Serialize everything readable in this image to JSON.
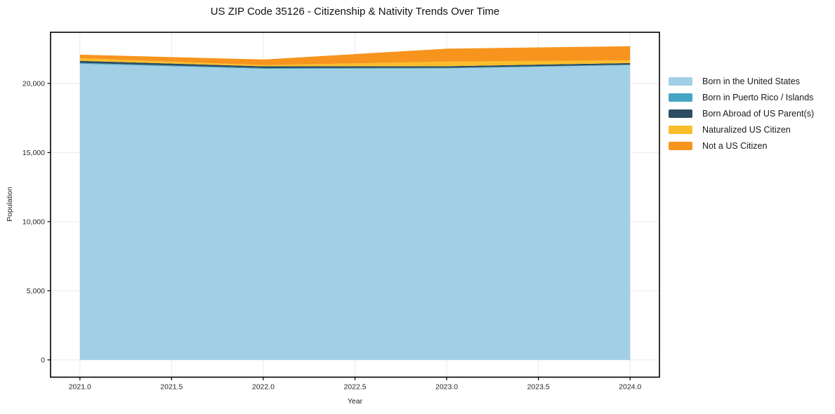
{
  "figure": {
    "background": "#ffffff",
    "colors": {
      "grid": "#e9e9e9",
      "spine": "#000000",
      "tick_label": "#262626",
      "title": "#111111"
    }
  },
  "chart_data": {
    "type": "area",
    "stacked": true,
    "title": "US ZIP Code 35126 - Citizenship & Nativity Trends Over Time",
    "xlabel": "Year",
    "ylabel": "Population",
    "x": [
      2021,
      2022,
      2023,
      2024
    ],
    "series": [
      {
        "name": "Born in the United States",
        "color": "#a1cfe6",
        "values": [
          21420,
          21060,
          21090,
          21320
        ]
      },
      {
        "name": "Born in Puerto Rico / Islands",
        "color": "#46a5c4",
        "values": [
          65,
          50,
          35,
          40
        ]
      },
      {
        "name": "Born Abroad of US Parent(s)",
        "color": "#2c4d63",
        "values": [
          150,
          130,
          120,
          115
        ]
      },
      {
        "name": "Naturalized US Citizen",
        "color": "#fbbe2b",
        "values": [
          190,
          90,
          330,
          200
        ]
      },
      {
        "name": "Not a US Citizen",
        "color": "#f7941e",
        "values": [
          255,
          400,
          940,
          1015
        ]
      }
    ],
    "totals": [
      22080,
      21730,
      22515,
      22690
    ],
    "xlim": [
      2020.84,
      2024.16
    ],
    "ylim": [
      -1250,
      23700
    ],
    "xticks": {
      "values": [
        2021.0,
        2021.5,
        2022.0,
        2022.5,
        2023.0,
        2023.5,
        2024.0
      ],
      "labels": [
        "2021.0",
        "2021.5",
        "2022.0",
        "2022.5",
        "2023.0",
        "2023.5",
        "2024.0"
      ]
    },
    "yticks": {
      "values": [
        0,
        5000,
        10000,
        15000,
        20000
      ],
      "labels": [
        "0",
        "5,000",
        "10,000",
        "15,000",
        "20,000"
      ]
    },
    "grid": true,
    "legend_position": "right-outside"
  }
}
